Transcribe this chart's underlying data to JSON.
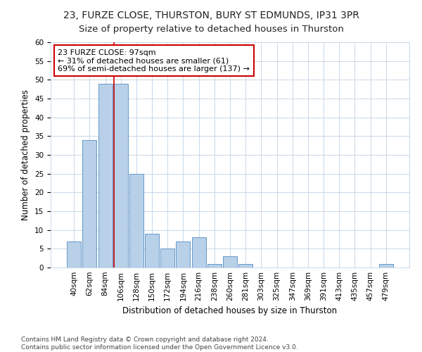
{
  "title": "23, FURZE CLOSE, THURSTON, BURY ST EDMUNDS, IP31 3PR",
  "subtitle": "Size of property relative to detached houses in Thurston",
  "xlabel": "Distribution of detached houses by size in Thurston",
  "ylabel": "Number of detached properties",
  "categories": [
    "40sqm",
    "62sqm",
    "84sqm",
    "106sqm",
    "128sqm",
    "150sqm",
    "172sqm",
    "194sqm",
    "216sqm",
    "238sqm",
    "260sqm",
    "281sqm",
    "303sqm",
    "325sqm",
    "347sqm",
    "369sqm",
    "391sqm",
    "413sqm",
    "435sqm",
    "457sqm",
    "479sqm"
  ],
  "values": [
    7,
    34,
    49,
    49,
    25,
    9,
    5,
    7,
    8,
    1,
    3,
    1,
    0,
    0,
    0,
    0,
    0,
    0,
    0,
    0,
    1
  ],
  "bar_color": "#b8d0e8",
  "bar_edge_color": "#6699cc",
  "grid_color": "#c8d8e8",
  "vline_x_index": 2.55,
  "vline_color": "#cc0000",
  "annotation_text": "23 FURZE CLOSE: 97sqm\n← 31% of detached houses are smaller (61)\n69% of semi-detached houses are larger (137) →",
  "annotation_box_color": "white",
  "annotation_box_edge_color": "#cc0000",
  "ylim": [
    0,
    60
  ],
  "yticks": [
    0,
    5,
    10,
    15,
    20,
    25,
    30,
    35,
    40,
    45,
    50,
    55,
    60
  ],
  "footer": "Contains HM Land Registry data © Crown copyright and database right 2024.\nContains public sector information licensed under the Open Government Licence v3.0.",
  "title_fontsize": 10,
  "subtitle_fontsize": 9.5,
  "axis_label_fontsize": 8.5,
  "tick_fontsize": 7.5,
  "footer_fontsize": 6.5,
  "annotation_fontsize": 8,
  "background_color": "#ffffff"
}
